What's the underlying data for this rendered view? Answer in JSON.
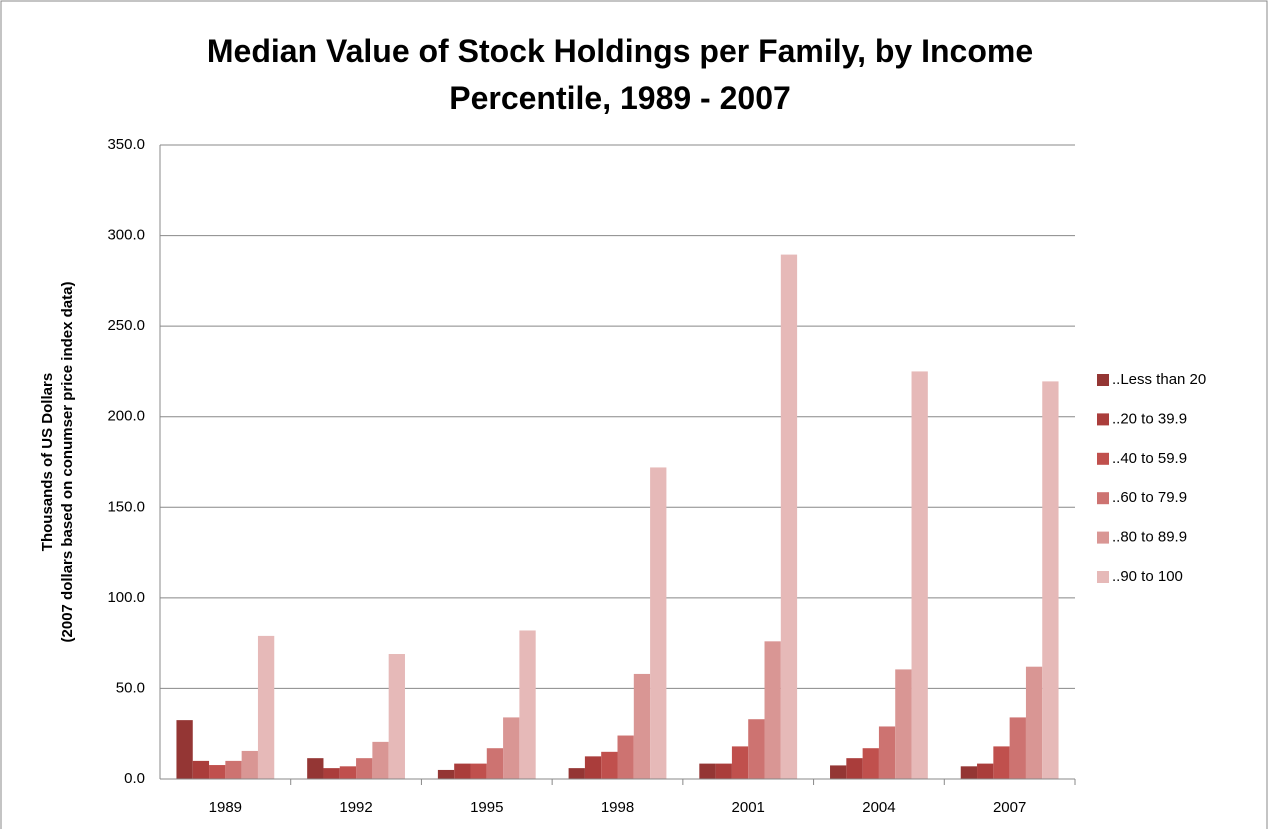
{
  "chart_data": {
    "type": "bar",
    "title": "Median Value of Stock Holdings per Family, by Income\nPercentile, 1989 - 2007",
    "y_label": "Thousands of US Dollars\n(2007 dollars based on conumser price index data)",
    "categories": [
      "1989",
      "1992",
      "1995",
      "1998",
      "2001",
      "2004",
      "2007"
    ],
    "series": [
      {
        "name": "..Less than 20",
        "color": "#943634",
        "values": [
          32.5,
          11.5,
          5,
          6,
          8.5,
          7.5,
          7
        ]
      },
      {
        "name": "..20 to 39.9",
        "color": "#aa3d3b",
        "values": [
          10,
          6,
          8.5,
          12.5,
          8.5,
          11.5,
          8.5
        ]
      },
      {
        "name": "..40 to 59.9",
        "color": "#c0504d",
        "values": [
          7.7,
          7,
          8.5,
          15,
          18,
          17,
          18
        ]
      },
      {
        "name": "..60 to 79.9",
        "color": "#cd7371",
        "values": [
          10,
          11.5,
          17,
          24,
          33,
          29,
          34
        ]
      },
      {
        "name": "..80 to 89.9",
        "color": "#d99694",
        "values": [
          15.5,
          20.5,
          34,
          58,
          76,
          60.5,
          62
        ]
      },
      {
        "name": "..90 to 100",
        "color": "#e6b9b8",
        "values": [
          79,
          69,
          82,
          172,
          289.5,
          225,
          219.5
        ]
      }
    ],
    "ylim": [
      0,
      350
    ],
    "yticks": [
      {
        "value": 0,
        "label": "0.0"
      },
      {
        "value": 50,
        "label": "50.0"
      },
      {
        "value": 100,
        "label": "100.0"
      },
      {
        "value": 150,
        "label": "150.0"
      },
      {
        "value": 200,
        "label": "200.0"
      },
      {
        "value": 250,
        "label": "250.0"
      },
      {
        "value": 300,
        "label": "300.0"
      },
      {
        "value": 350,
        "label": "350.0"
      }
    ],
    "grid": true,
    "legend": "right"
  }
}
